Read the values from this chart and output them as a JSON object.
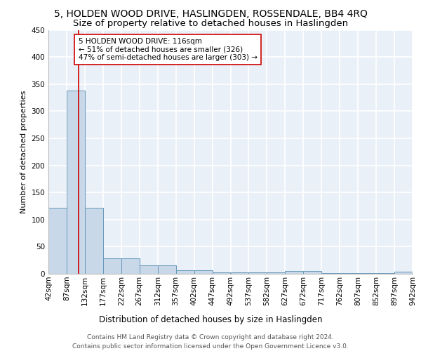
{
  "title1": "5, HOLDEN WOOD DRIVE, HASLINGDEN, ROSSENDALE, BB4 4RQ",
  "title2": "Size of property relative to detached houses in Haslingden",
  "xlabel": "Distribution of detached houses by size in Haslingden",
  "ylabel": "Number of detached properties",
  "bin_edges": [
    42,
    87,
    132,
    177,
    222,
    267,
    312,
    357,
    402,
    447,
    492,
    537,
    582,
    627,
    672,
    717,
    762,
    807,
    852,
    897,
    942
  ],
  "bar_heights": [
    122,
    338,
    122,
    29,
    29,
    16,
    16,
    6,
    6,
    2,
    2,
    2,
    2,
    5,
    5,
    1,
    1,
    1,
    1,
    4
  ],
  "bar_color": "#c8d8e8",
  "bar_edge_color": "#6699bb",
  "bg_color": "#eaf0f8",
  "grid_color": "#ffffff",
  "vline_x": 116,
  "vline_color": "#cc0000",
  "annotation_text": "5 HOLDEN WOOD DRIVE: 116sqm\n← 51% of detached houses are smaller (326)\n47% of semi-detached houses are larger (303) →",
  "annotation_box_color": "#ffffff",
  "annotation_box_edge": "#cc0000",
  "ylim": [
    0,
    450
  ],
  "yticks": [
    0,
    50,
    100,
    150,
    200,
    250,
    300,
    350,
    400,
    450
  ],
  "footer": "Contains HM Land Registry data © Crown copyright and database right 2024.\nContains public sector information licensed under the Open Government Licence v3.0.",
  "title1_fontsize": 10,
  "title2_fontsize": 9.5,
  "xlabel_fontsize": 8.5,
  "ylabel_fontsize": 8,
  "tick_fontsize": 7.5,
  "annotation_fontsize": 7.5,
  "footer_fontsize": 6.5
}
